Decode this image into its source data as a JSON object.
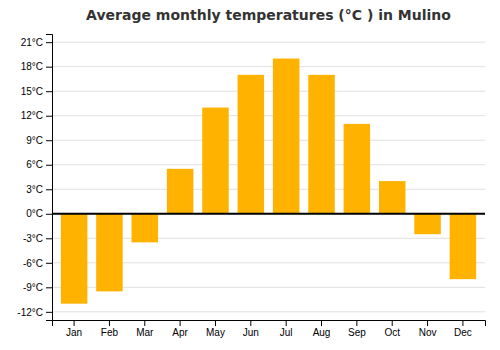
{
  "chart_data": {
    "type": "bar",
    "title": "Average monthly temperatures (°C ) in Mulino",
    "categories": [
      "Jan",
      "Feb",
      "Mar",
      "Apr",
      "May",
      "Jun",
      "Jul",
      "Aug",
      "Sep",
      "Oct",
      "Nov",
      "Dec"
    ],
    "values": [
      -11.0,
      -9.5,
      -3.5,
      5.5,
      13.0,
      17.0,
      19.0,
      17.0,
      11.0,
      4.0,
      -2.5,
      -8.0
    ],
    "color": "#FFB300",
    "ylim": [
      -13,
      22
    ],
    "yticks": [
      {
        "value": -12,
        "label": "-12°C"
      },
      {
        "value": -9,
        "label": "-9°C"
      },
      {
        "value": -6,
        "label": "-6°C"
      },
      {
        "value": -3,
        "label": "-3°C"
      },
      {
        "value": 0,
        "label": "0°C"
      },
      {
        "value": 3,
        "label": "3°C"
      },
      {
        "value": 6,
        "label": "6°C"
      },
      {
        "value": 9,
        "label": "9°C"
      },
      {
        "value": 12,
        "label": "12°C"
      },
      {
        "value": 15,
        "label": "15°C"
      },
      {
        "value": 18,
        "label": "18°C"
      },
      {
        "value": 21,
        "label": "21°C"
      }
    ],
    "grid": true
  }
}
